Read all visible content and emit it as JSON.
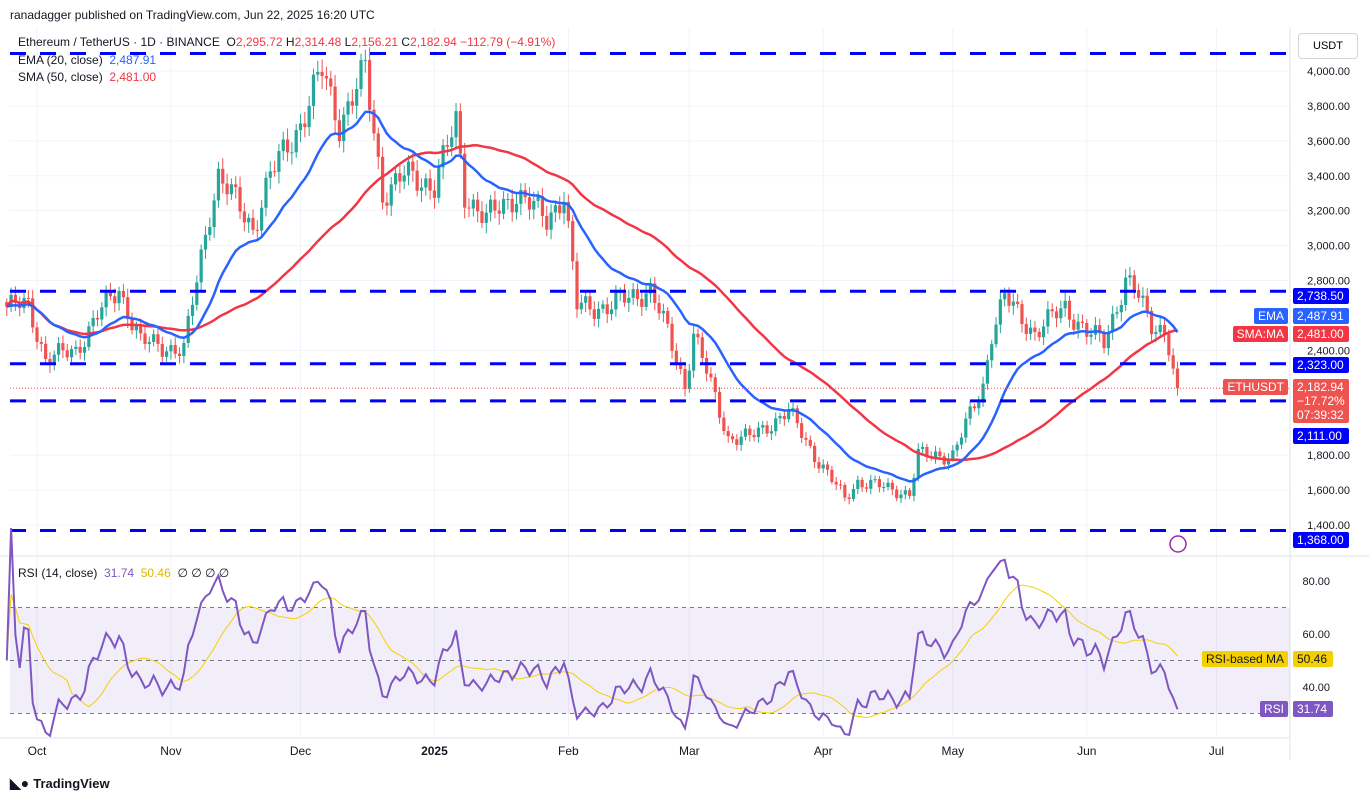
{
  "header": {
    "published": "ranadagger published on TradingView.com, Jun 22, 2025 16:20 UTC"
  },
  "legend": {
    "symbol": "Ethereum / TetherUS · 1D · BINANCE",
    "o_label": "O",
    "o": "2,295.72",
    "h_label": "H",
    "h": "2,314.48",
    "l_label": "L",
    "l": "2,156.21",
    "c_label": "C",
    "c": "2,182.94",
    "change": "−112.79 (−4.91%)",
    "ema_label": "EMA (20, close)",
    "ema": "2,487.91",
    "sma_label": "SMA (50, close)",
    "sma": "2,481.00"
  },
  "rsi_legend": {
    "label": "RSI (14, close)",
    "rsi": "31.74",
    "ma": "50.46",
    "extra": "∅ ∅ ∅ ∅"
  },
  "currency": "USDT",
  "footer": {
    "brand": "TradingView"
  },
  "colors": {
    "up": "#26a69a",
    "down": "#ef5350",
    "ema": "#2962ff",
    "sma": "#f23645",
    "level": "#0000ff",
    "rsi": "#7e57c2",
    "rsi_ma": "#f5d000"
  },
  "chart_data": {
    "type": "candlestick",
    "title": "Ethereum / TetherUS · 1D · BINANCE",
    "ylim": [
      1320,
      4120
    ],
    "y_ticks": [
      "4,000.00",
      "3,800.00",
      "3,600.00",
      "3,400.00",
      "3,200.00",
      "3,000.00",
      "2,800.00",
      "2,400.00",
      "1,800.00",
      "1,600.00",
      "1,400.00"
    ],
    "y_tick_values": [
      4000,
      3800,
      3600,
      3400,
      3200,
      3000,
      2800,
      2400,
      1800,
      1600,
      1400
    ],
    "x_ticks": [
      {
        "label": "Oct",
        "date": "2024-10-01"
      },
      {
        "label": "Nov",
        "date": "2024-11-01"
      },
      {
        "label": "Dec",
        "date": "2024-12-01"
      },
      {
        "label": "2025",
        "date": "2025-01-01"
      },
      {
        "label": "Feb",
        "date": "2025-02-01"
      },
      {
        "label": "Mar",
        "date": "2025-03-01"
      },
      {
        "label": "Apr",
        "date": "2025-04-01"
      },
      {
        "label": "May",
        "date": "2025-05-01"
      },
      {
        "label": "Jun",
        "date": "2025-06-01"
      },
      {
        "label": "Jul",
        "date": "2025-07-01"
      }
    ],
    "levels": [
      {
        "value": 4100,
        "label": ""
      },
      {
        "value": 2738.5,
        "label": "2,738.50"
      },
      {
        "value": 2323,
        "label": "2,323.00"
      },
      {
        "value": 2111,
        "label": "2,111.00"
      },
      {
        "value": 1368,
        "label": "1,368.00"
      }
    ],
    "last_price": {
      "label": "ETHUSDT",
      "value": "2,182.94",
      "change": "−17.72%",
      "countdown": "07:39:32"
    },
    "ema_tag": {
      "label": "EMA",
      "value": "2,487.91"
    },
    "sma_tag": {
      "label": "SMA:MA",
      "value": "2,481.00"
    },
    "close_keypoints": [
      [
        "2024-09-24",
        2650
      ],
      [
        "2024-09-29",
        2660
      ],
      [
        "2024-10-03",
        2350
      ],
      [
        "2024-10-10",
        2400
      ],
      [
        "2024-10-15",
        2600
      ],
      [
        "2024-10-20",
        2750
      ],
      [
        "2024-10-25",
        2450
      ],
      [
        "2024-11-04",
        2400
      ],
      [
        "2024-11-10",
        3200
      ],
      [
        "2024-11-12",
        3400
      ],
      [
        "2024-11-20",
        3100
      ],
      [
        "2024-11-24",
        3400
      ],
      [
        "2024-12-01",
        3700
      ],
      [
        "2024-12-06",
        4000
      ],
      [
        "2024-12-10",
        3700
      ],
      [
        "2024-12-16",
        4000
      ],
      [
        "2024-12-20",
        3300
      ],
      [
        "2024-12-25",
        3400
      ],
      [
        "2025-01-01",
        3350
      ],
      [
        "2025-01-06",
        3700
      ],
      [
        "2025-01-08",
        3300
      ],
      [
        "2025-01-13",
        3150
      ],
      [
        "2025-01-20",
        3300
      ],
      [
        "2025-01-27",
        3150
      ],
      [
        "2025-01-31",
        3300
      ],
      [
        "2025-02-03",
        2650
      ],
      [
        "2025-02-10",
        2650
      ],
      [
        "2025-02-20",
        2750
      ],
      [
        "2025-02-24",
        2500
      ],
      [
        "2025-02-28",
        2200
      ],
      [
        "2025-03-02",
        2500
      ],
      [
        "2025-03-10",
        1900
      ],
      [
        "2025-03-15",
        1900
      ],
      [
        "2025-03-24",
        2050
      ],
      [
        "2025-03-30",
        1800
      ],
      [
        "2025-04-06",
        1550
      ],
      [
        "2025-04-09",
        1650
      ],
      [
        "2025-04-21",
        1580
      ],
      [
        "2025-04-23",
        1800
      ],
      [
        "2025-05-01",
        1800
      ],
      [
        "2025-05-08",
        2200
      ],
      [
        "2025-05-10",
        2500
      ],
      [
        "2025-05-13",
        2700
      ],
      [
        "2025-05-20",
        2500
      ],
      [
        "2025-05-27",
        2650
      ],
      [
        "2025-06-01",
        2500
      ],
      [
        "2025-06-05",
        2450
      ],
      [
        "2025-06-10",
        2800
      ],
      [
        "2025-06-12",
        2750
      ],
      [
        "2025-06-16",
        2550
      ],
      [
        "2025-06-19",
        2520
      ],
      [
        "2025-06-20",
        2420
      ],
      [
        "2025-06-21",
        2295.72
      ],
      [
        "2025-06-22",
        2182.94
      ]
    ],
    "rsi": {
      "ylim": [
        25,
        90
      ],
      "ticks": [
        "80.00",
        "60.00",
        "40.00"
      ],
      "tick_values": [
        80,
        60,
        40
      ],
      "bands": [
        70,
        30
      ],
      "mid": 50,
      "last": "31.74",
      "ma_last": "50.46",
      "ma_label": "RSI-based MA",
      "rsi_label": "RSI"
    }
  }
}
